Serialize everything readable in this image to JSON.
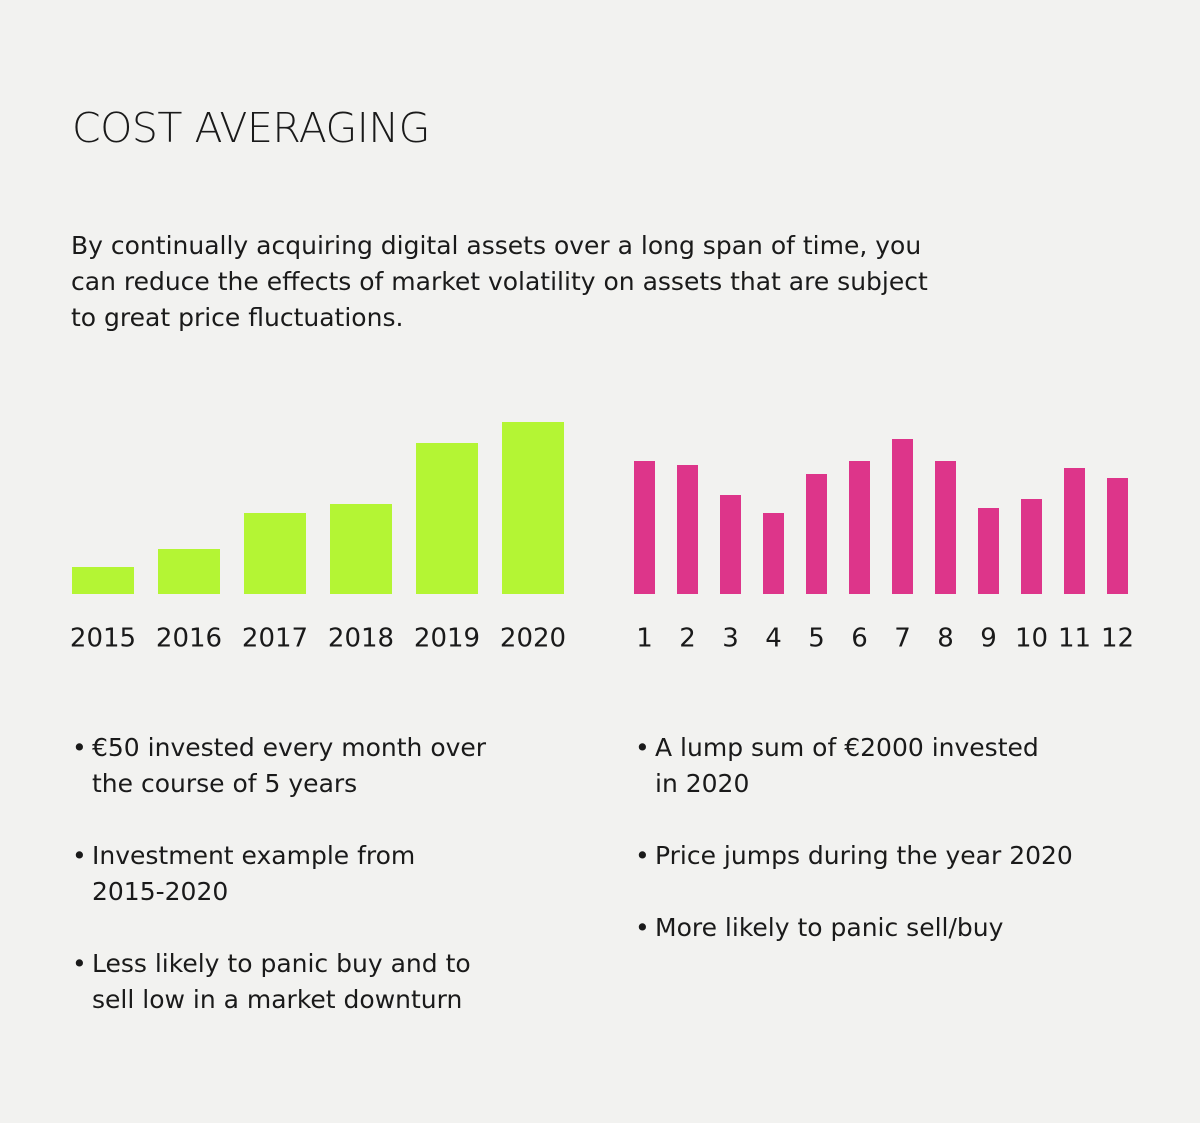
{
  "title": "COST AVERAGING",
  "intro_lines": [
    "By continually acquiring digital assets over a long span of time, you",
    "can reduce the effects of market volatility on assets that are subject",
    "to great price fluctuations."
  ],
  "chart_data": [
    {
      "type": "bar",
      "color": "#b4f534",
      "categories": [
        "2015",
        "2016",
        "2017",
        "2018",
        "2019",
        "2020"
      ],
      "values": [
        27,
        45,
        81,
        90,
        151,
        172
      ],
      "ylim": [
        0,
        180
      ]
    },
    {
      "type": "bar",
      "color": "#dd358a",
      "categories": [
        "1",
        "2",
        "3",
        "4",
        "5",
        "6",
        "7",
        "8",
        "9",
        "10",
        "11",
        "12"
      ],
      "values": [
        133,
        129,
        99,
        81,
        120,
        133,
        155,
        133,
        86,
        95,
        126,
        116
      ],
      "ylim": [
        0,
        180
      ]
    }
  ],
  "left_bullets": [
    [
      "€50 invested every month over",
      "the course of 5 years"
    ],
    [
      "Investment example from",
      "2015-2020"
    ],
    [
      "Less likely to panic buy and to",
      "sell low in a market downturn"
    ]
  ],
  "right_bullets": [
    [
      "A lump sum of €2000 invested",
      "in 2020"
    ],
    [
      "Price jumps during the year 2020"
    ],
    [
      "More likely to panic sell/buy"
    ]
  ]
}
